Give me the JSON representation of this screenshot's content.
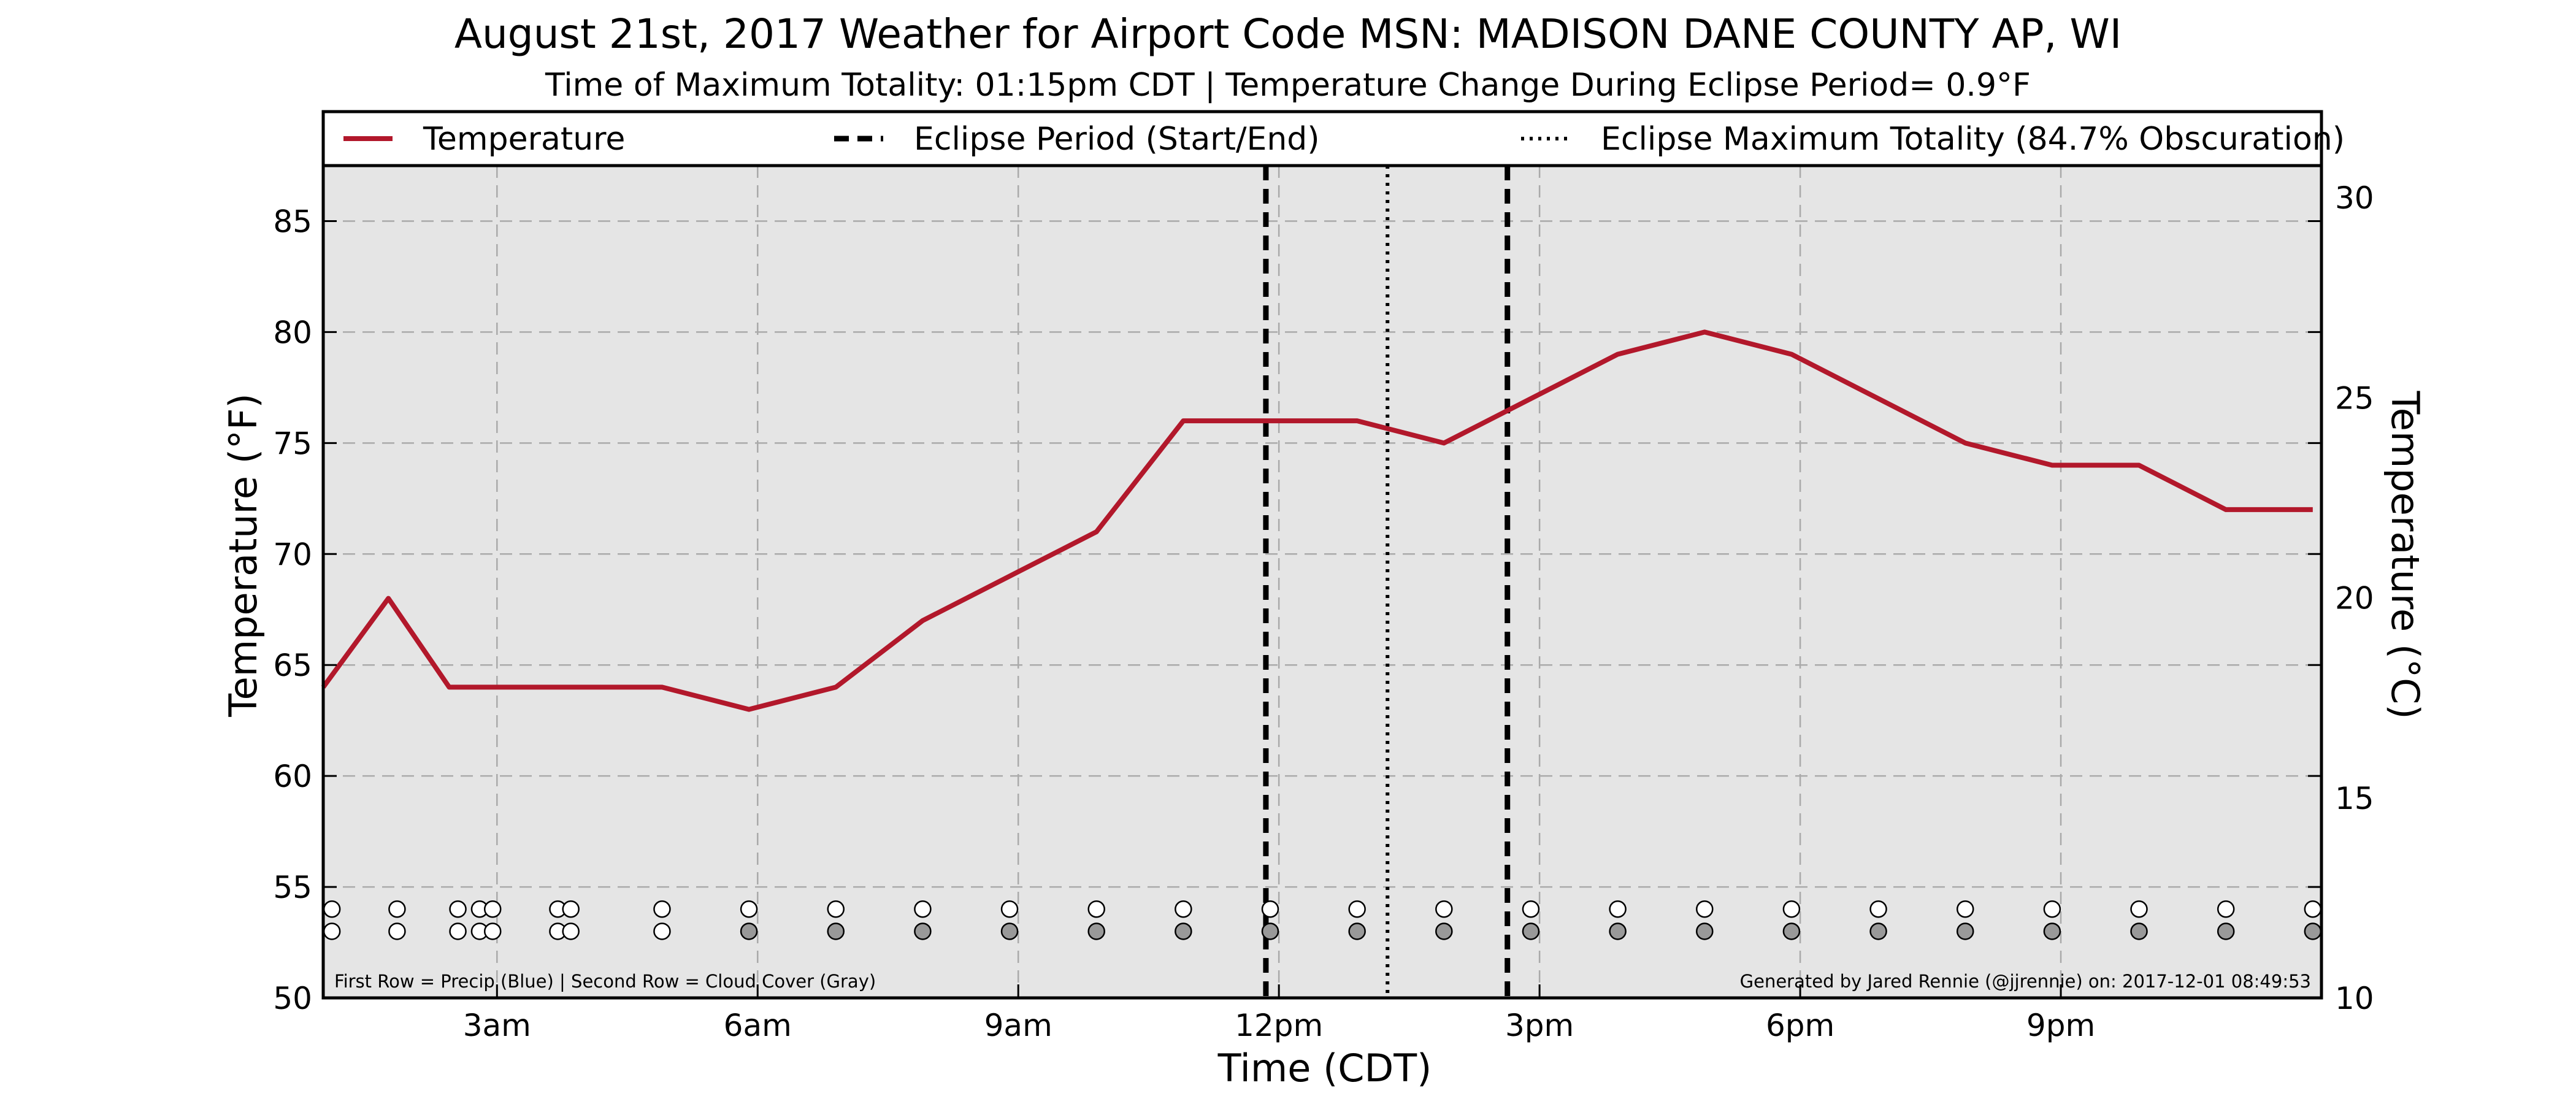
{
  "chart_data": {
    "type": "line",
    "title": "August 21st, 2017 Weather for Airport Code MSN: MADISON DANE COUNTY AP, WI",
    "subtitle": "Time of Maximum Totality: 01:15pm CDT | Temperature Change During Eclipse Period= 0.9°F",
    "xlabel": "Time (CDT)",
    "ylabel": "Temperature (°F)",
    "ylabel_right": "Temperature (°C)",
    "xlim": [
      1.0,
      24.0
    ],
    "ylim": [
      50,
      87.5
    ],
    "ylim_right": [
      10,
      30.8
    ],
    "x_ticks": [
      {
        "x": 3,
        "label": "3am"
      },
      {
        "x": 6,
        "label": "6am"
      },
      {
        "x": 9,
        "label": "9am"
      },
      {
        "x": 12,
        "label": "12pm"
      },
      {
        "x": 15,
        "label": "3pm"
      },
      {
        "x": 18,
        "label": "6pm"
      },
      {
        "x": 21,
        "label": "9pm"
      }
    ],
    "y_ticks": [
      50,
      55,
      60,
      65,
      70,
      75,
      80,
      85
    ],
    "y_ticks_right": [
      10,
      15,
      20,
      25,
      30
    ],
    "grid": true,
    "legend_placement": "top",
    "legend": [
      {
        "label": "Temperature",
        "style": "solid",
        "color": "#b2182b"
      },
      {
        "label": "Eclipse Period (Start/End)",
        "style": "dashed",
        "color": "#000000"
      },
      {
        "label": "Eclipse Maximum Totality (84.7% Obscuration)",
        "style": "dotted",
        "color": "#000000"
      }
    ],
    "series": [
      {
        "name": "Temperature",
        "color": "#b2182b",
        "x": [
          1.0,
          1.75,
          2.45,
          3.0,
          3.85,
          4.9,
          5.9,
          6.9,
          7.9,
          8.9,
          9.9,
          10.9,
          11.9,
          12.9,
          13.9,
          14.9,
          15.9,
          16.9,
          17.9,
          18.9,
          19.9,
          20.9,
          21.9,
          22.9,
          23.9
        ],
        "y": [
          64,
          68,
          64,
          64,
          64,
          64,
          63,
          64,
          67,
          69,
          71,
          76,
          76,
          76,
          75,
          77,
          79,
          80,
          79,
          77,
          75,
          74,
          74,
          72,
          72
        ]
      }
    ],
    "eclipse_lines": [
      {
        "x": 11.85,
        "label": "Eclipse Period (Start/End)",
        "style": "dashed"
      },
      {
        "x": 13.25,
        "label": "Eclipse Maximum Totality (84.7% Obscuration)",
        "style": "dotted"
      },
      {
        "x": 14.63,
        "label": "Eclipse Period (Start/End)",
        "style": "dashed"
      }
    ],
    "observation_rows": {
      "x": [
        1.1,
        1.85,
        2.55,
        2.8,
        2.95,
        3.7,
        3.85,
        4.9,
        5.9,
        6.9,
        7.9,
        8.9,
        9.9,
        10.9,
        11.9,
        12.9,
        13.9,
        14.9,
        15.9,
        16.9,
        17.9,
        18.9,
        19.9,
        20.9,
        21.9,
        22.9,
        23.9
      ],
      "precip_y": 54,
      "cloud_y": 53,
      "precip_color": [
        "#ffffff",
        "#ffffff",
        "#ffffff",
        "#ffffff",
        "#ffffff",
        "#ffffff",
        "#ffffff",
        "#ffffff",
        "#ffffff",
        "#ffffff",
        "#ffffff",
        "#ffffff",
        "#ffffff",
        "#ffffff",
        "#ffffff",
        "#ffffff",
        "#ffffff",
        "#ffffff",
        "#ffffff",
        "#ffffff",
        "#ffffff",
        "#ffffff",
        "#ffffff",
        "#ffffff",
        "#ffffff",
        "#ffffff",
        "#ffffff"
      ],
      "cloud_color": [
        "#ffffff",
        "#ffffff",
        "#ffffff",
        "#ffffff",
        "#ffffff",
        "#ffffff",
        "#ffffff",
        "#ffffff",
        "#999999",
        "#999999",
        "#999999",
        "#999999",
        "#999999",
        "#999999",
        "#999999",
        "#999999",
        "#999999",
        "#999999",
        "#999999",
        "#999999",
        "#999999",
        "#999999",
        "#999999",
        "#999999",
        "#999999",
        "#999999",
        "#999999"
      ]
    },
    "annotations": {
      "bottom_left": "First Row = Precip (Blue) | Second Row = Cloud Cover (Gray)",
      "bottom_right": "Generated by Jared Rennie (@jjrennie) on: 2017-12-01 08:49:53"
    },
    "colors": {
      "plot_background": "#e5e5e5",
      "grid": "#aaaaaa",
      "temperature": "#b2182b"
    }
  }
}
